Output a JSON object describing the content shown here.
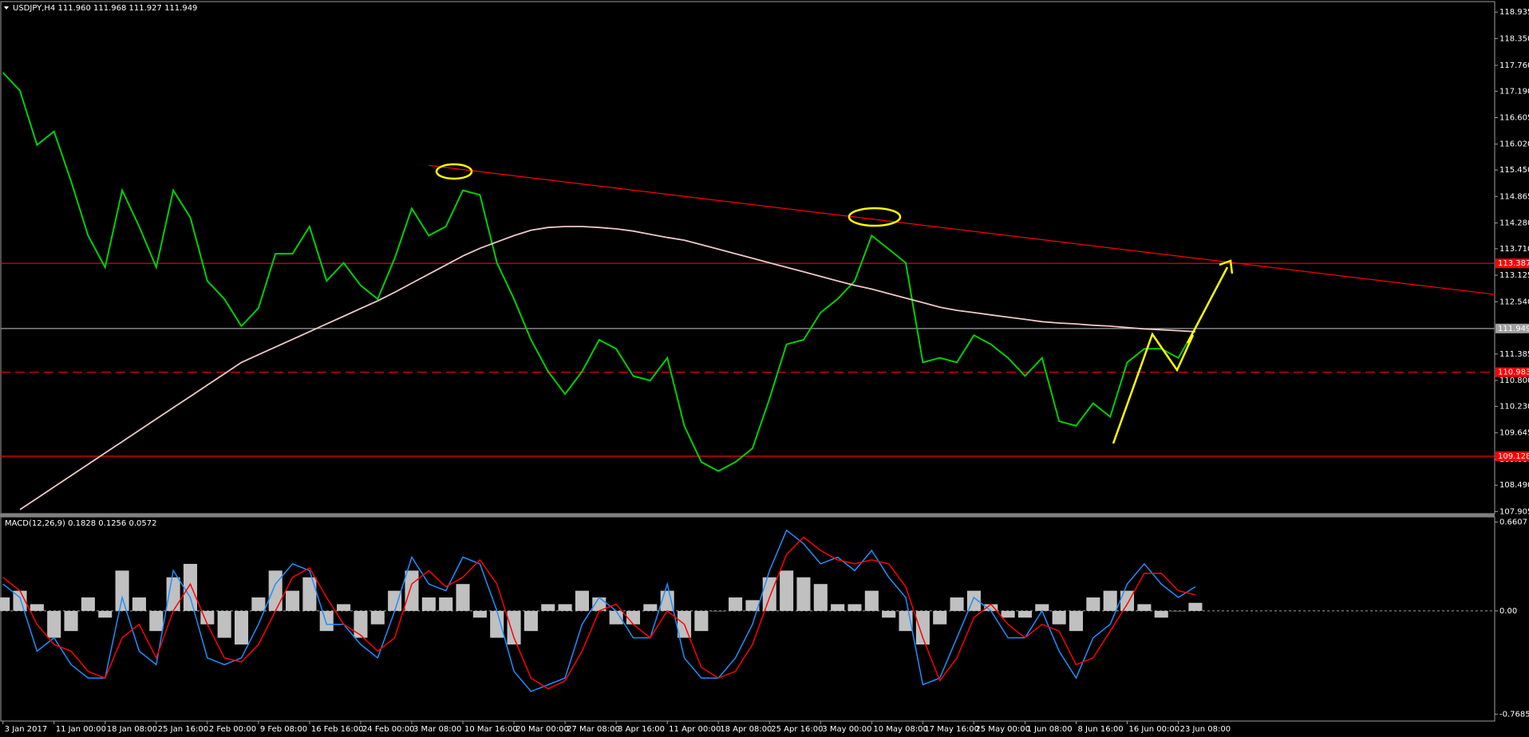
{
  "chart_data": [
    {
      "type": "line",
      "title": "USDJPY,H4  111.960 111.968 111.927 111.949",
      "categories": [
        "3 Jan 2017",
        null,
        null,
        "11 Jan 00:00",
        null,
        null,
        "18 Jan 08:00",
        null,
        null,
        "25 Jan 16:00",
        null,
        null,
        "2 Feb 00:00",
        null,
        null,
        "9 Feb 08:00",
        null,
        null,
        "16 Feb 16:00",
        null,
        null,
        "24 Feb 00:00",
        null,
        null,
        "3 Mar 08:00",
        null,
        null,
        "10 Mar 16:00",
        null,
        null,
        "20 Mar 00:00",
        null,
        null,
        "27 Mar 08:00",
        null,
        null,
        "3 Apr 16:00",
        null,
        null,
        "11 Apr 00:00",
        null,
        null,
        "18 Apr 08:00",
        null,
        null,
        "25 Apr 16:00",
        null,
        null,
        "3 May 00:00",
        null,
        null,
        "10 May 08:00",
        null,
        null,
        "17 May 16:00",
        null,
        null,
        "25 May 00:00",
        null,
        null,
        "1 Jun 08:00",
        null,
        null,
        "8 Jun 16:00",
        null,
        null,
        "16 Jun 00:00",
        null,
        null,
        "23 Jun 08:00",
        null
      ],
      "series": [
        {
          "color": "#00d000",
          "values": [
            117.6,
            117.2,
            116.0,
            116.3,
            115.2,
            114.0,
            113.3,
            115.0,
            114.2,
            113.3,
            115.0,
            114.4,
            113.0,
            112.6,
            112.0,
            112.4,
            113.6,
            113.6,
            114.2,
            113.0,
            113.4,
            112.9,
            112.6,
            113.5,
            114.6,
            114.0,
            114.2,
            115.0,
            114.9,
            113.4,
            112.6,
            111.7,
            111.0,
            110.5,
            111.0,
            111.7,
            111.5,
            110.9,
            110.8,
            111.3,
            109.8,
            109.0,
            108.8,
            109.0,
            109.3,
            110.4,
            111.6,
            111.7,
            112.3,
            112.6,
            113.0,
            114.0,
            113.7,
            113.4,
            111.2,
            111.3,
            111.2,
            111.8,
            111.6,
            111.3,
            110.9,
            111.3,
            109.9,
            109.8,
            110.3,
            110.0,
            111.2,
            111.5,
            111.5,
            111.3,
            111.95
          ]
        },
        {
          "color": "#f0c8c8",
          "values": [
            null,
            107.95,
            108.2,
            108.45,
            108.7,
            108.95,
            109.2,
            109.45,
            109.7,
            109.95,
            110.2,
            110.45,
            110.7,
            110.95,
            111.2,
            111.37,
            111.54,
            111.71,
            111.88,
            112.05,
            112.22,
            112.39,
            112.56,
            112.75,
            112.95,
            113.15,
            113.35,
            113.55,
            113.72,
            113.86,
            114.0,
            114.12,
            114.18,
            114.2,
            114.2,
            114.18,
            114.15,
            114.1,
            114.03,
            113.96,
            113.9,
            113.8,
            113.7,
            113.6,
            113.5,
            113.4,
            113.3,
            113.2,
            113.1,
            113.0,
            112.9,
            112.82,
            112.72,
            112.62,
            112.52,
            112.42,
            112.35,
            112.3,
            112.25,
            112.2,
            112.15,
            112.1,
            112.07,
            112.05,
            112.02,
            112.0,
            111.97,
            111.94,
            111.92,
            111.9,
            111.88
          ]
        }
      ],
      "ylim": [
        107.86,
        119.15
      ],
      "yticks": [
        118.935,
        {
          "value": 118.35,
          "label": "118.350"
        },
        {
          "value": 117.76,
          "label": "117.760"
        },
        {
          "value": 117.19,
          "label": "117.190"
        },
        116.605,
        {
          "value": 116.02,
          "label": "116.020"
        },
        {
          "value": 115.45,
          "label": "115.450"
        },
        114.865,
        {
          "value": 114.28,
          "label": "114.280"
        },
        {
          "value": 113.71,
          "label": "113.710"
        },
        113.125,
        {
          "value": 112.54,
          "label": "112.540"
        },
        111.385,
        {
          "value": 110.8,
          "label": "110.800"
        },
        {
          "value": 110.23,
          "label": "110.230"
        },
        109.645,
        {
          "value": 109.06,
          "label": "109.060"
        },
        {
          "value": 108.49,
          "label": "108.490"
        },
        107.905
      ],
      "levels": [
        {
          "value": 113.387,
          "label": "113.387",
          "color": "#ff0000",
          "style": "solid"
        },
        {
          "value": 111.949,
          "label": "111.949",
          "color": "#a0a0a0",
          "style": "solid"
        },
        {
          "value": 110.983,
          "label": "110.983",
          "color": "#ff0000",
          "style": "dashed"
        },
        {
          "value": 109.128,
          "label": "109.128",
          "color": "#ff0000",
          "style": "solid"
        }
      ],
      "trendline": {
        "x": [
          25,
          87.6
        ],
        "values": [
          115.55,
          112.7
        ],
        "color": "#ff0000"
      }
    },
    {
      "type": "macd",
      "title": "MACD(12,26,9) 0.1828 0.1256 0.0572",
      "ylim": [
        -0.82,
        0.7
      ],
      "yticks": [
        0.6607,
        {
          "value": 0,
          "label": "0.00"
        },
        -0.7685
      ],
      "histogram": {
        "color": "#c0c0c0",
        "values": [
          0.1,
          0.15,
          0.05,
          -0.2,
          -0.15,
          0.1,
          -0.05,
          0.3,
          0.1,
          -0.15,
          0.25,
          0.35,
          -0.1,
          -0.2,
          -0.25,
          0.1,
          0.3,
          0.15,
          0.25,
          -0.15,
          0.05,
          -0.2,
          -0.1,
          0.15,
          0.3,
          0.1,
          0.1,
          0.2,
          -0.05,
          -0.2,
          -0.25,
          -0.15,
          0.05,
          0.05,
          0.15,
          0.1,
          -0.1,
          -0.1,
          0.05,
          0.15,
          -0.2,
          -0.15,
          0.0,
          0.1,
          0.08,
          0.25,
          0.3,
          0.25,
          0.2,
          0.05,
          0.05,
          0.15,
          -0.05,
          -0.15,
          -0.25,
          -0.1,
          0.1,
          0.15,
          0.05,
          -0.05,
          -0.05,
          0.05,
          -0.1,
          -0.15,
          0.1,
          0.15,
          0.15,
          0.05,
          -0.05,
          0.0,
          0.06
        ]
      },
      "series": [
        {
          "color": "#1e90ff",
          "values": [
            0.2,
            0.1,
            -0.3,
            -0.2,
            -0.4,
            -0.5,
            -0.5,
            0.1,
            -0.3,
            -0.4,
            0.3,
            0.1,
            -0.35,
            -0.4,
            -0.35,
            -0.1,
            0.2,
            0.35,
            0.3,
            -0.1,
            -0.1,
            -0.25,
            -0.35,
            0.0,
            0.4,
            0.2,
            0.15,
            0.4,
            0.35,
            0.0,
            -0.45,
            -0.6,
            -0.55,
            -0.5,
            -0.1,
            0.1,
            0.0,
            -0.2,
            -0.2,
            0.2,
            -0.35,
            -0.5,
            -0.5,
            -0.35,
            -0.1,
            0.3,
            0.6,
            0.5,
            0.35,
            0.4,
            0.3,
            0.45,
            0.25,
            0.1,
            -0.55,
            -0.5,
            -0.2,
            0.1,
            0.0,
            -0.2,
            -0.2,
            0.0,
            -0.3,
            -0.5,
            -0.2,
            -0.1,
            0.2,
            0.35,
            0.2,
            0.1,
            0.18
          ]
        },
        {
          "color": "#ff0000",
          "values": [
            0.25,
            0.15,
            -0.1,
            -0.25,
            -0.3,
            -0.45,
            -0.5,
            -0.2,
            -0.1,
            -0.35,
            0.0,
            0.2,
            -0.1,
            -0.35,
            -0.38,
            -0.25,
            0.0,
            0.25,
            0.32,
            0.1,
            -0.1,
            -0.18,
            -0.3,
            -0.2,
            0.2,
            0.3,
            0.18,
            0.25,
            0.38,
            0.2,
            -0.2,
            -0.5,
            -0.58,
            -0.52,
            -0.3,
            0.0,
            0.05,
            -0.1,
            -0.2,
            0.0,
            -0.1,
            -0.42,
            -0.5,
            -0.45,
            -0.25,
            0.1,
            0.42,
            0.55,
            0.45,
            0.38,
            0.35,
            0.38,
            0.35,
            0.18,
            -0.2,
            -0.52,
            -0.35,
            -0.05,
            0.05,
            -0.1,
            -0.2,
            -0.1,
            -0.15,
            -0.4,
            -0.35,
            -0.15,
            0.05,
            0.28,
            0.28,
            0.15,
            0.12
          ]
        }
      ]
    }
  ]
}
